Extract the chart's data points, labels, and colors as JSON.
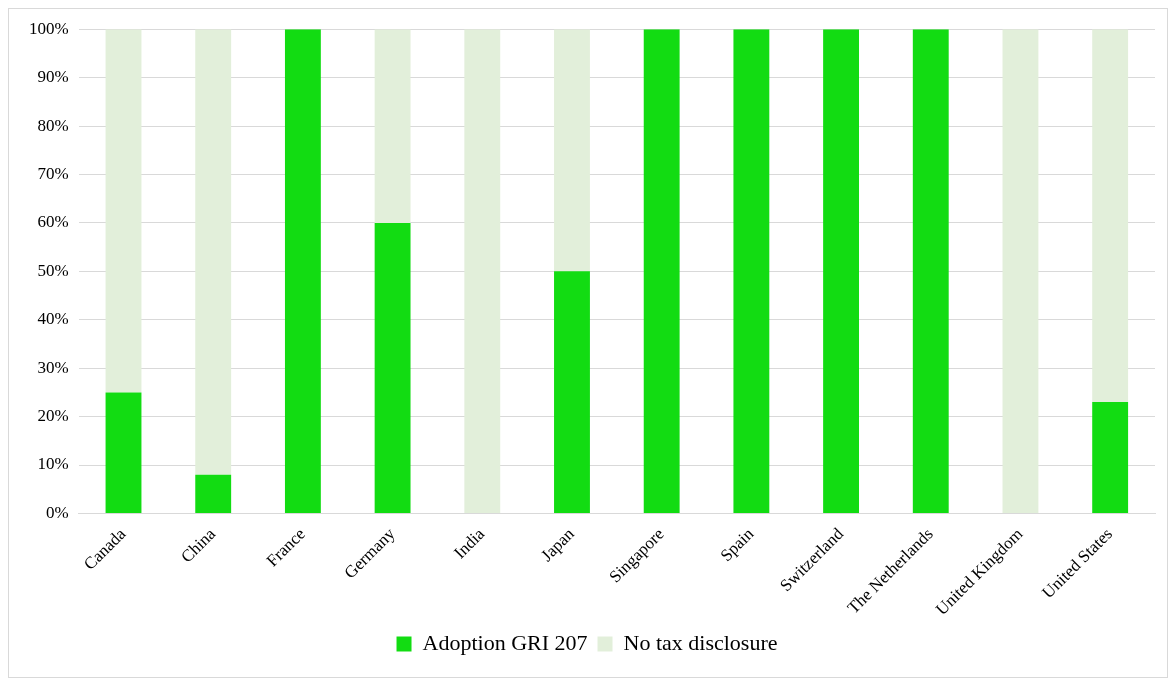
{
  "chart_data": {
    "type": "bar",
    "stacked": true,
    "categories": [
      "Canada",
      "China",
      "France",
      "Germany",
      "India",
      "Japan",
      "Singapore",
      "Spain",
      "Switzerland",
      "The Netherlands",
      "United Kingdom",
      "United States"
    ],
    "series": [
      {
        "name": "Adoption GRI 207",
        "color": "#12dc12",
        "values": [
          25,
          8,
          100,
          60,
          0,
          50,
          100,
          100,
          100,
          100,
          0,
          23
        ]
      },
      {
        "name": "No tax disclosure",
        "color": "#e2efda",
        "values": [
          75,
          92,
          0,
          40,
          100,
          50,
          0,
          0,
          0,
          0,
          100,
          77
        ]
      }
    ],
    "ylim": [
      0,
      100
    ],
    "yticks": [
      {
        "value": 0,
        "label": "0%"
      },
      {
        "value": 10,
        "label": "10%"
      },
      {
        "value": 20,
        "label": "20%"
      },
      {
        "value": 30,
        "label": "30%"
      },
      {
        "value": 40,
        "label": "40%"
      },
      {
        "value": 50,
        "label": "50%"
      },
      {
        "value": 60,
        "label": "60%"
      },
      {
        "value": 70,
        "label": "70%"
      },
      {
        "value": 80,
        "label": "80%"
      },
      {
        "value": 90,
        "label": "90%"
      },
      {
        "value": 100,
        "label": "100%"
      }
    ],
    "grid": "y",
    "legend": "bottom"
  }
}
